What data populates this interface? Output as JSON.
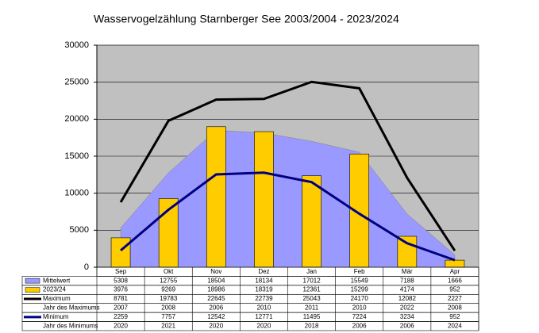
{
  "chart_data": {
    "type": "combo",
    "title": "Wasservogelzählung Starnberger See 2003/2004 - 2023/2024",
    "categories": [
      "Sep",
      "Okt",
      "Nov",
      "Dez",
      "Jan",
      "Feb",
      "Mär",
      "Apr"
    ],
    "ylim": [
      0,
      30000
    ],
    "yticks": [
      0,
      5000,
      10000,
      15000,
      20000,
      25000,
      30000
    ],
    "grid": true,
    "series": [
      {
        "name": "Mittelwert",
        "type": "area",
        "color": "#9999ff",
        "values": [
          5308,
          12755,
          18504,
          18134,
          17012,
          15549,
          7188,
          1666
        ]
      },
      {
        "name": "2023/24",
        "type": "bar",
        "color": "#ffcc00",
        "values": [
          3976,
          9269,
          18986,
          18319,
          12361,
          15299,
          4174,
          952
        ]
      },
      {
        "name": "Maximum",
        "type": "line",
        "color": "#000000",
        "values": [
          8781,
          19783,
          22645,
          22739,
          25043,
          24170,
          12082,
          2227
        ]
      },
      {
        "name": "Minimum",
        "type": "line",
        "color": "#000080",
        "values": [
          2259,
          7757,
          12542,
          12771,
          11495,
          7224,
          3234,
          952
        ]
      }
    ],
    "table_rows": [
      {
        "name": "Jahr des Maximums",
        "after": "Maximum",
        "values": [
          2007,
          2008,
          2006,
          2010,
          2011,
          2010,
          2022,
          2008
        ]
      },
      {
        "name": "Jahr des Minimums",
        "after": "Minimum",
        "values": [
          2020,
          2021,
          2020,
          2020,
          2018,
          2006,
          2006,
          2024
        ]
      }
    ]
  }
}
